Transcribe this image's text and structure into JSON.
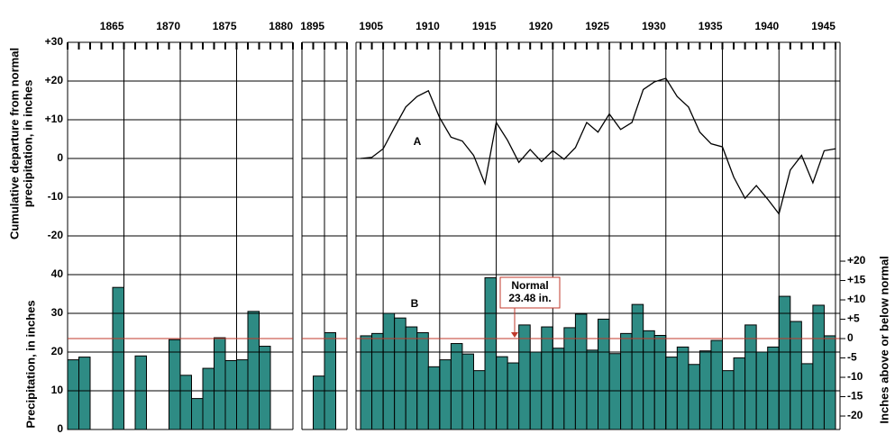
{
  "chart_data": [
    {
      "type": "line",
      "ylabel": [
        "Cumulative departure from normal",
        "precipitation, in inches"
      ],
      "annotation": "A",
      "x_segments": [
        {
          "xlim": [
            1860,
            1880
          ],
          "xticks": [
            1865,
            1870,
            1875,
            1880
          ]
        },
        {
          "xlim": [
            1893,
            1897
          ],
          "xticks": [
            1895
          ]
        },
        {
          "xlim": [
            1902.6,
            1945.4
          ],
          "xticks": [
            1905,
            1910,
            1915,
            1920,
            1925,
            1930,
            1935,
            1940,
            1945
          ]
        }
      ],
      "ylim": [
        -20,
        30
      ],
      "yticks": [
        {
          "value": 30,
          "label": "+30"
        },
        {
          "value": 20,
          "label": "+20"
        },
        {
          "value": 10,
          "label": "+10"
        },
        0,
        -10,
        -20
      ],
      "x": [
        1903,
        1904,
        1905,
        1906,
        1907,
        1908,
        1909,
        1910,
        1911,
        1912,
        1913,
        1914,
        1915,
        1916,
        1917,
        1918,
        1919,
        1920,
        1921,
        1922,
        1923,
        1924,
        1925,
        1926,
        1927,
        1928,
        1929,
        1930,
        1931,
        1932,
        1933,
        1934,
        1935,
        1936,
        1937,
        1938,
        1939,
        1940,
        1941,
        1942,
        1943,
        1944,
        1945
      ],
      "values": [
        0,
        0.3,
        2.5,
        8,
        13.3,
        16,
        17.5,
        10.5,
        5.5,
        4.5,
        0.8,
        -6.5,
        9.3,
        4.7,
        -1,
        2.3,
        -0.8,
        2,
        -0.2,
        2.8,
        9.3,
        6.8,
        11.5,
        7.5,
        9.3,
        17.8,
        19.8,
        20.7,
        16,
        13.3,
        6.8,
        3.8,
        3,
        -4.8,
        -10.3,
        -7,
        -10.5,
        -14.3,
        -3,
        0.8,
        -6.3,
        2,
        2.5
      ],
      "color": "#000000"
    },
    {
      "type": "bar",
      "ylabel": "Precipitation, in inches",
      "y2label": "Inches above or below normal",
      "annotation": "B",
      "normal": 23.48,
      "normal_label": [
        "Normal",
        "23.48 in."
      ],
      "normal_color": "#c0392b",
      "ylim": [
        0,
        44
      ],
      "yticks": [
        40,
        30,
        20,
        10,
        0
      ],
      "y2lim": [
        -23.48,
        20.52
      ],
      "y2ticks": [
        {
          "value": 20,
          "label": "+20"
        },
        {
          "value": 15,
          "label": "+15"
        },
        {
          "value": 10,
          "label": "+10"
        },
        {
          "value": 5,
          "label": "+5"
        },
        0,
        -5,
        -10,
        -15,
        -20
      ],
      "x": [
        1861,
        1862,
        1865,
        1867,
        1870,
        1871,
        1872,
        1873,
        1874,
        1875,
        1876,
        1877,
        1878,
        1895,
        1896,
        1904,
        1905,
        1906,
        1907,
        1908,
        1909,
        1910,
        1911,
        1912,
        1913,
        1914,
        1915,
        1916,
        1917,
        1918,
        1919,
        1920,
        1921,
        1922,
        1923,
        1924,
        1925,
        1926,
        1927,
        1928,
        1929,
        1930,
        1931,
        1932,
        1933,
        1934,
        1935,
        1936,
        1937,
        1938,
        1939,
        1940,
        1941,
        1942,
        1943,
        1944,
        1945
      ],
      "values": [
        18,
        18.7,
        36.7,
        19,
        23.2,
        14,
        8,
        15.8,
        23.7,
        17.8,
        18,
        30.5,
        21.5,
        13.8,
        25,
        24.2,
        24.8,
        30,
        28.8,
        26.5,
        25,
        16.2,
        18,
        22.2,
        19.5,
        15.2,
        39.2,
        18.8,
        17.2,
        27,
        20,
        26.5,
        21,
        26.3,
        29.8,
        20.5,
        28.5,
        19.6,
        24.8,
        32.3,
        25.5,
        24.3,
        18.7,
        21.3,
        16.8,
        20.3,
        23,
        15.2,
        18.5,
        27,
        20,
        21.3,
        34.4,
        27.9,
        17,
        32.1,
        24.2
      ],
      "color": "#2e8b84"
    }
  ]
}
